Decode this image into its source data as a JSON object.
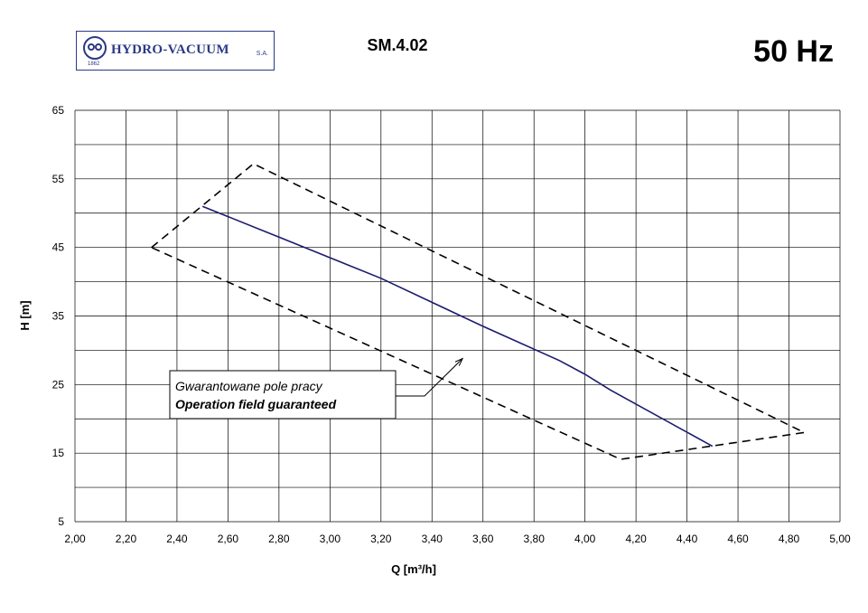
{
  "header": {
    "logo_text": "HYDRO-VACUUM",
    "logo_suffix": "S.A.",
    "logo_year": "1862",
    "model": "SM.4.02",
    "frequency": "50 Hz"
  },
  "chart_data": {
    "type": "line",
    "title": "",
    "xlabel": "Q [m³/h]",
    "ylabel": "H [m]",
    "xlim": [
      2.0,
      5.0
    ],
    "ylim": [
      5,
      65
    ],
    "grid": true,
    "x_ticks": [
      "2,00",
      "2,20",
      "2,40",
      "2,60",
      "2,80",
      "3,00",
      "3,20",
      "3,40",
      "3,60",
      "3,80",
      "4,00",
      "4,20",
      "4,40",
      "4,60",
      "4,80",
      "5,00"
    ],
    "y_ticks": [
      "5",
      "15",
      "25",
      "35",
      "45",
      "55",
      "65"
    ],
    "series": [
      {
        "name": "",
        "style": "solid",
        "color": "#1b1b6e",
        "points": [
          [
            2.5,
            51.0
          ],
          [
            2.8,
            46.5
          ],
          [
            3.2,
            40.5
          ],
          [
            3.6,
            33.5
          ],
          [
            3.9,
            28.5
          ],
          [
            4.0,
            26.5
          ],
          [
            4.1,
            24.2
          ],
          [
            4.5,
            16.0
          ]
        ]
      },
      {
        "name": "",
        "style": "dashed",
        "color": "#000000",
        "points": [
          [
            2.3,
            45.0
          ],
          [
            2.7,
            57.2
          ],
          [
            4.86,
            18.0
          ],
          [
            4.14,
            14.1
          ],
          [
            2.3,
            45.0
          ]
        ]
      }
    ],
    "annotation": {
      "line1": "Gwarantowane pole pracy",
      "line2": "Operation field guaranteed",
      "arrow_to": [
        3.52,
        28.8
      ]
    }
  }
}
